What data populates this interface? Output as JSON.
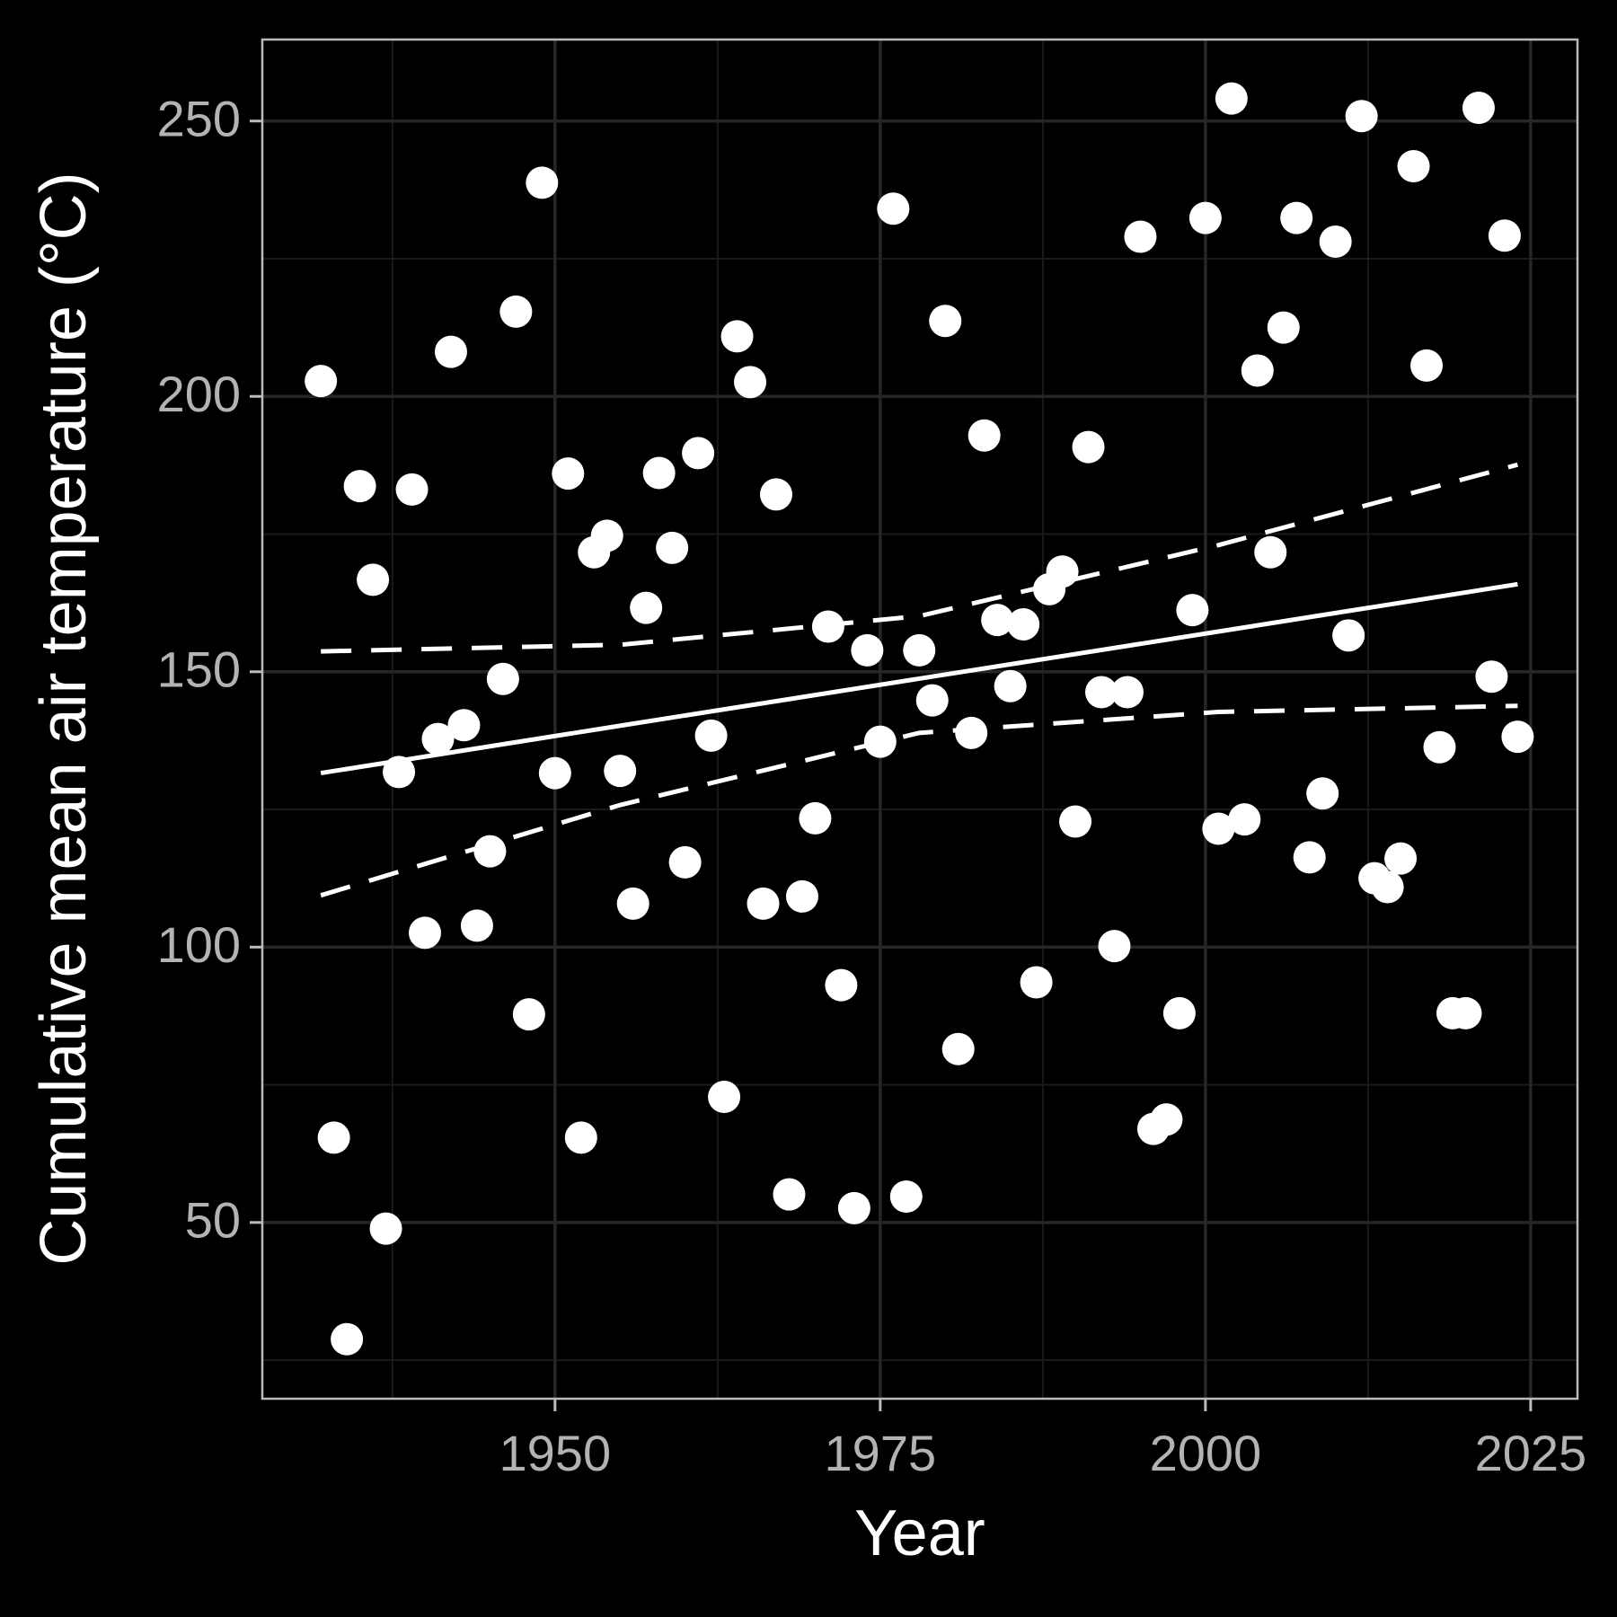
{
  "chart_data": {
    "type": "scatter",
    "x_label": "Year",
    "y_label": "Cumulative mean air temperature (°C)",
    "x": [
      1932,
      1933,
      1934,
      1935,
      1936,
      1937,
      1938,
      1939,
      1940,
      1941,
      1942,
      1943,
      1944,
      1945,
      1946,
      1947,
      1948,
      1949,
      1950,
      1951,
      1952,
      1953,
      1954,
      1955,
      1956,
      1957,
      1958,
      1959,
      1960,
      1961,
      1962,
      1963,
      1964,
      1965,
      1966,
      1967,
      1968,
      1969,
      1970,
      1971,
      1972,
      1973,
      1974,
      1975,
      1976,
      1977,
      1978,
      1979,
      1980,
      1981,
      1982,
      1983,
      1984,
      1985,
      1986,
      1987,
      1988,
      1989,
      1990,
      1991,
      1992,
      1993,
      1994,
      1995,
      1996,
      1997,
      1998,
      1999,
      2000,
      2001,
      2002,
      2003,
      2004,
      2005,
      2006,
      2007,
      2008,
      2009,
      2010,
      2011,
      2012,
      2013,
      2014,
      2015,
      2016,
      2017,
      2018,
      2019,
      2020,
      2021,
      2022,
      2023,
      2024
    ],
    "values": [
      202.8,
      65.4,
      28.8,
      183.7,
      166.7,
      48.9,
      131.8,
      183.1,
      102.6,
      137.8,
      208.1,
      140.3,
      103.9,
      117.4,
      148.7,
      215.4,
      87.8,
      238.8,
      131.6,
      186.0,
      65.4,
      171.7,
      174.7,
      132.0,
      107.9,
      161.6,
      186.1,
      172.5,
      115.4,
      189.7,
      138.4,
      72.8,
      210.9,
      202.6,
      107.9,
      182.2,
      55.1,
      109.2,
      123.4,
      158.2,
      93.1,
      52.6,
      153.9,
      137.3,
      234.1,
      54.7,
      153.9,
      144.8,
      213.7,
      81.5,
      138.9,
      192.9,
      159.4,
      147.4,
      158.6,
      93.6,
      165.0,
      168.2,
      122.8,
      190.8,
      146.3,
      100.2,
      146.3,
      229.0,
      67.0,
      68.7,
      88.0,
      161.2,
      232.4,
      121.5,
      254.1,
      123.2,
      204.7,
      171.7,
      212.5,
      232.4,
      116.3,
      127.9,
      228.1,
      156.6,
      250.9,
      112.5,
      110.9,
      116.1,
      241.8,
      205.6,
      136.3,
      88.0,
      88.0,
      252.4,
      149.1,
      229.2,
      138.2
    ],
    "color": "#ffffff",
    "trend": {
      "x": [
        1932,
        1955,
        1978,
        2001,
        2024
      ],
      "fit": [
        131.6,
        140.2,
        148.75,
        157.3,
        165.9
      ],
      "upper": [
        153.7,
        154.9,
        160.1,
        173.0,
        187.6
      ],
      "lower": [
        109.4,
        125.8,
        138.9,
        142.7,
        143.8
      ],
      "color": "#ffffff"
    },
    "xlim": [
      1927.5,
      2028.6
    ],
    "ylim": [
      18,
      264.8
    ],
    "xticks": [
      1950,
      1975,
      2000,
      2025
    ],
    "yticks": [
      50,
      100,
      150,
      200,
      250
    ],
    "xminor": [
      1937.5,
      1962.5,
      1987.5,
      2012.5
    ],
    "yminor": [
      25,
      75,
      125,
      175,
      225
    ],
    "grid": true
  }
}
